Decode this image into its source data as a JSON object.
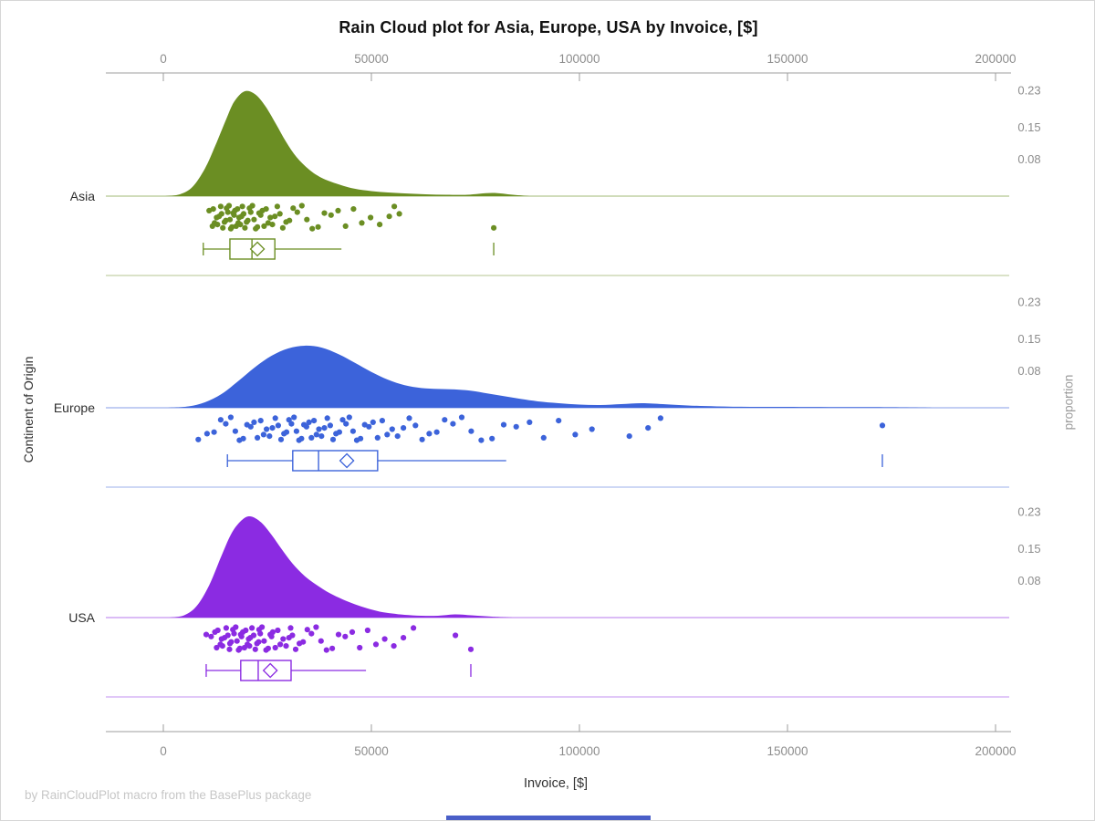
{
  "title": "Rain Cloud plot for Asia, Europe, USA by Invoice, [$]",
  "footer": "by RainCloudPlot macro from the BasePlus package",
  "axes": {
    "x": {
      "label": "Invoice, [$]",
      "ticks": [
        "0",
        "50000",
        "100000",
        "150000",
        "200000"
      ],
      "tick_values": [
        0,
        50000,
        100000,
        150000,
        200000
      ]
    },
    "proportion": {
      "label": "proportion",
      "ticks": [
        "0.23",
        "0.15",
        "0.08"
      ],
      "tick_values": [
        0.23,
        0.15,
        0.08
      ]
    },
    "y": {
      "label": "Continent of Origin",
      "categories": [
        "Asia",
        "Europe",
        "USA"
      ]
    }
  },
  "colors": {
    "axis_line": "#9c9c9c",
    "tick_label": "#8d8d8d",
    "category_label": "#2f2f2f",
    "title_text": "#111111",
    "footer_text": "#c7c7c7",
    "bottom_bar": "#4a5fc8"
  },
  "chart_data": {
    "type": "raincloud",
    "title": "Rain Cloud plot for Asia, Europe, USA by Invoice, [$]",
    "xlabel": "Invoice, [$]",
    "ylabel": "Continent of Origin",
    "proportion_label": "proportion",
    "x_range": [
      0,
      200000
    ],
    "jitter_pattern": [
      0.22,
      0.72,
      0.45,
      0.92,
      0.12,
      0.58,
      0.32,
      0.85,
      0.5,
      0.05,
      0.68,
      0.28,
      0.95,
      0.4,
      0.15,
      0.78,
      0.35,
      0.62,
      0.02,
      0.88
    ],
    "groups": [
      {
        "name": "Asia",
        "color": "#6B8E23",
        "light_color": "#B5C691",
        "faint_color": "#C3D1A7",
        "density": [
          [
            500,
            0
          ],
          [
            4000,
            0.004
          ],
          [
            7000,
            0.02
          ],
          [
            10000,
            0.06
          ],
          [
            12500,
            0.11
          ],
          [
            15000,
            0.165
          ],
          [
            17000,
            0.205
          ],
          [
            19500,
            0.228
          ],
          [
            22000,
            0.222
          ],
          [
            24500,
            0.196
          ],
          [
            27000,
            0.158
          ],
          [
            29500,
            0.118
          ],
          [
            32000,
            0.085
          ],
          [
            35000,
            0.058
          ],
          [
            38000,
            0.04
          ],
          [
            42000,
            0.026
          ],
          [
            46000,
            0.016
          ],
          [
            50000,
            0.011
          ],
          [
            54000,
            0.008
          ],
          [
            58000,
            0.006
          ],
          [
            63000,
            0.004
          ],
          [
            68000,
            0.003
          ],
          [
            73000,
            0.003
          ],
          [
            79000,
            0.007
          ],
          [
            84000,
            0.003
          ],
          [
            88000,
            0
          ]
        ],
        "box": {
          "whisker_low": 9600,
          "q1": 16000,
          "median": 21300,
          "mean": 22600,
          "q3": 26800,
          "whisker_high": 42800,
          "outliers": [
            79400
          ]
        },
        "points": [
          11000,
          11800,
          12000,
          12300,
          12800,
          13000,
          13400,
          13800,
          14000,
          14300,
          14700,
          15000,
          15200,
          15500,
          15800,
          16000,
          16200,
          16500,
          16800,
          17000,
          17200,
          17500,
          17800,
          18000,
          18200,
          18500,
          18800,
          19000,
          19300,
          19600,
          20000,
          20300,
          20700,
          21000,
          21400,
          21800,
          22200,
          22600,
          23000,
          23400,
          23800,
          24200,
          24700,
          25200,
          25700,
          26200,
          26800,
          27400,
          28000,
          28700,
          29500,
          30300,
          31200,
          32200,
          33300,
          34500,
          35800,
          37200,
          38700,
          40300,
          42000,
          43800,
          45700,
          47700,
          49800,
          52000,
          54300,
          55500,
          56700,
          79400
        ]
      },
      {
        "name": "Europe",
        "color": "#3C63DA",
        "light_color": "#9DB1EC",
        "faint_color": "#B0C1EF",
        "density": [
          [
            1000,
            0
          ],
          [
            6000,
            0.003
          ],
          [
            10000,
            0.012
          ],
          [
            14000,
            0.03
          ],
          [
            18000,
            0.058
          ],
          [
            22000,
            0.088
          ],
          [
            26000,
            0.113
          ],
          [
            30000,
            0.129
          ],
          [
            34000,
            0.135
          ],
          [
            38000,
            0.131
          ],
          [
            42000,
            0.117
          ],
          [
            46000,
            0.098
          ],
          [
            50000,
            0.078
          ],
          [
            54000,
            0.061
          ],
          [
            58000,
            0.049
          ],
          [
            62000,
            0.043
          ],
          [
            66000,
            0.041
          ],
          [
            70000,
            0.04
          ],
          [
            74000,
            0.037
          ],
          [
            78000,
            0.031
          ],
          [
            82000,
            0.025
          ],
          [
            86000,
            0.019
          ],
          [
            90000,
            0.014
          ],
          [
            95000,
            0.01
          ],
          [
            100000,
            0.007
          ],
          [
            105000,
            0.006
          ],
          [
            110000,
            0.008
          ],
          [
            115000,
            0.01
          ],
          [
            120000,
            0.008
          ],
          [
            126000,
            0.005
          ],
          [
            133000,
            0.003
          ],
          [
            141000,
            0.002
          ],
          [
            150000,
            0.002
          ],
          [
            160000,
            0.0015
          ],
          [
            170000,
            0.0015
          ],
          [
            178000,
            0.001
          ],
          [
            186000,
            0
          ]
        ],
        "box": {
          "whisker_low": 15400,
          "q1": 31100,
          "median": 37300,
          "mean": 44100,
          "q3": 51500,
          "whisker_high": 82400,
          "outliers": [
            172800
          ]
        },
        "points": [
          8400,
          10500,
          12200,
          13800,
          15000,
          16200,
          17300,
          18300,
          19200,
          20100,
          21000,
          21800,
          22600,
          23400,
          24100,
          24800,
          25500,
          26200,
          26900,
          27600,
          28300,
          29000,
          29600,
          30200,
          30800,
          31400,
          32000,
          32600,
          33200,
          33800,
          34400,
          35000,
          35600,
          36200,
          36800,
          37400,
          38000,
          38700,
          39400,
          40100,
          40800,
          41500,
          42300,
          43100,
          43900,
          44700,
          45600,
          46500,
          47400,
          48400,
          49400,
          50400,
          51500,
          52600,
          53800,
          55000,
          56300,
          57700,
          59100,
          60600,
          62200,
          63900,
          65700,
          67600,
          69600,
          71700,
          74000,
          76400,
          79000,
          81800,
          84800,
          88000,
          91400,
          95000,
          99000,
          103000,
          112000,
          116500,
          119500,
          172800
        ]
      },
      {
        "name": "USA",
        "color": "#8B2BE2",
        "light_color": "#C595F0",
        "faint_color": "#CFA8F3",
        "density": [
          [
            1500,
            0
          ],
          [
            5000,
            0.005
          ],
          [
            8000,
            0.025
          ],
          [
            11000,
            0.07
          ],
          [
            14000,
            0.135
          ],
          [
            16500,
            0.185
          ],
          [
            19000,
            0.213
          ],
          [
            21000,
            0.22
          ],
          [
            23500,
            0.207
          ],
          [
            26000,
            0.18
          ],
          [
            28500,
            0.148
          ],
          [
            31000,
            0.118
          ],
          [
            34000,
            0.09
          ],
          [
            37000,
            0.07
          ],
          [
            40000,
            0.053
          ],
          [
            43000,
            0.04
          ],
          [
            46000,
            0.029
          ],
          [
            49000,
            0.02
          ],
          [
            52000,
            0.013
          ],
          [
            55000,
            0.009
          ],
          [
            58000,
            0.006
          ],
          [
            62000,
            0.004
          ],
          [
            66000,
            0.004
          ],
          [
            70000,
            0.007
          ],
          [
            74000,
            0.005
          ],
          [
            79000,
            0.002
          ],
          [
            84000,
            0
          ]
        ],
        "box": {
          "whisker_low": 10300,
          "q1": 18600,
          "median": 22800,
          "mean": 25700,
          "q3": 30700,
          "whisker_high": 48700,
          "outliers": [
            73900
          ]
        },
        "points": [
          10300,
          11500,
          12400,
          12800,
          13100,
          13700,
          14000,
          14200,
          14700,
          15100,
          15500,
          15900,
          16000,
          16300,
          16700,
          17000,
          17400,
          17700,
          18100,
          18400,
          18600,
          18800,
          19100,
          19500,
          19800,
          20200,
          20500,
          20700,
          20900,
          21300,
          21700,
          22100,
          22500,
          22900,
          23000,
          23300,
          23700,
          24200,
          24700,
          25200,
          25700,
          26000,
          26300,
          26900,
          27500,
          28100,
          28800,
          29500,
          30200,
          30600,
          31000,
          31800,
          32700,
          33600,
          34600,
          35600,
          36700,
          37900,
          39200,
          40600,
          42100,
          43700,
          45400,
          47200,
          49100,
          51100,
          53200,
          55400,
          57700,
          60100,
          70200,
          73900
        ]
      }
    ]
  }
}
